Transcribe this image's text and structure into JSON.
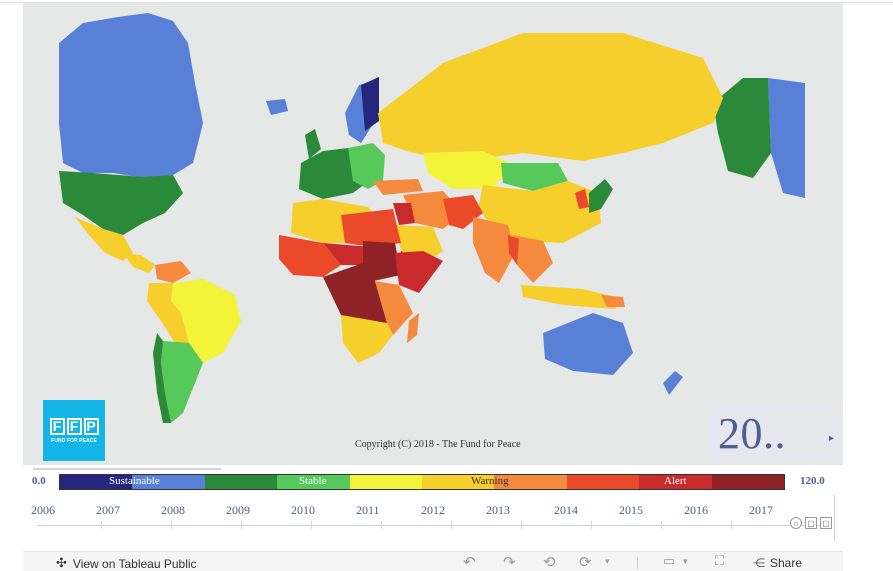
{
  "map": {
    "copyright": "Copyright (C) 2018 - The Fund for Peace",
    "colors": {
      "ocean": "#e6e7e7",
      "sustainable_dark": "#25277f",
      "sustainable_light": "#5780d6",
      "stable_dark": "#2a8a3a",
      "stable_light": "#57c95b",
      "warning_yellow": "#f3f43a",
      "warning_gold": "#f6cf2c",
      "alert_orange": "#f5893d",
      "alert_red": "#ea4a2a",
      "alert_dark": "#8f2226"
    }
  },
  "logo": {
    "letters": [
      "F",
      "F",
      "P"
    ],
    "tagline": "FUND FOR PEACE"
  },
  "year_display": {
    "value": "20..",
    "caret": "▸"
  },
  "legend": {
    "min": "0.0",
    "max": "120.0",
    "labels": [
      "Sustainable",
      "Stable",
      "Warning",
      "Alert"
    ],
    "colors": [
      "#25277f",
      "#5780d6",
      "#2a8a3a",
      "#57c95b",
      "#f3f43a",
      "#f6cf2c",
      "#f5893d",
      "#ea4a2a",
      "#c92b2d",
      "#8f2226"
    ]
  },
  "timeline": {
    "years": [
      "2006",
      "2007",
      "2008",
      "2009",
      "2010",
      "2011",
      "2012",
      "2013",
      "2014",
      "2015",
      "2016",
      "2017"
    ],
    "controls": [
      "○",
      "▢",
      "▢"
    ]
  },
  "tableau_toolbar": {
    "view_label": "View on Tableau Public",
    "share_label": "Share"
  }
}
